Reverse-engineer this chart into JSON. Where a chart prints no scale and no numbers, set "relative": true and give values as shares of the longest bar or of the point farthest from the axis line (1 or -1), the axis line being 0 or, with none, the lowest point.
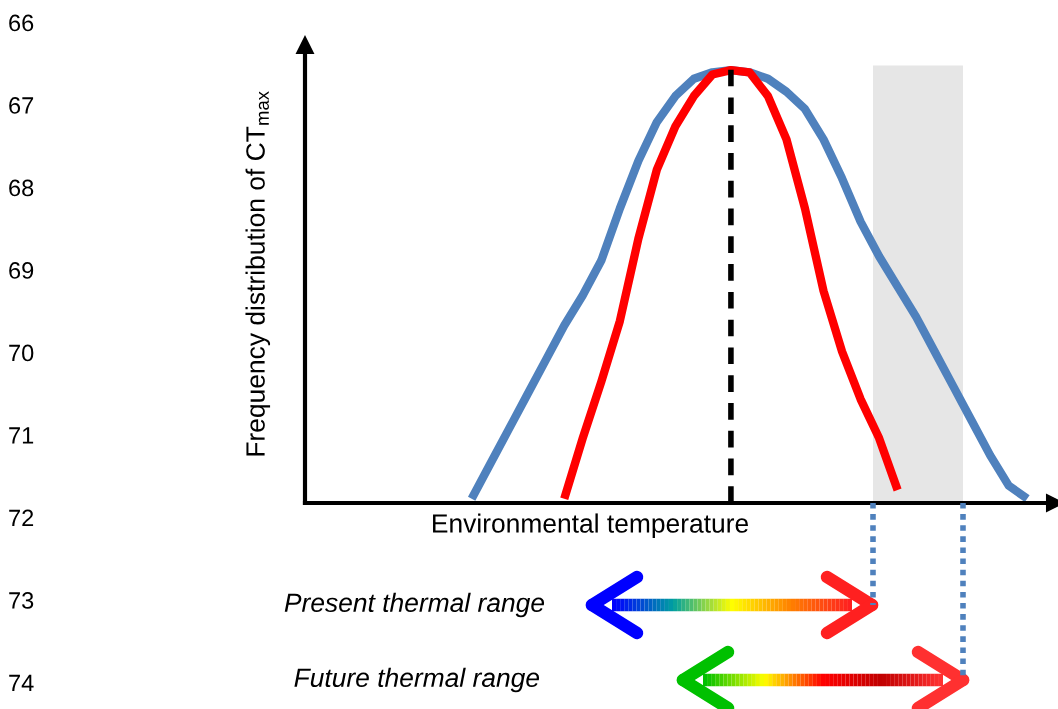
{
  "chart_data": {
    "type": "line",
    "relative": true,
    "xlabel": "Environmental temperature",
    "ylabel": "Frequency distribution of CT$_{max}$",
    "categories": [
      null,
      null,
      null,
      null,
      null,
      null,
      null,
      null,
      null,
      null,
      null,
      null,
      null,
      null,
      null,
      null,
      null,
      null,
      null,
      null,
      null,
      null,
      null,
      null,
      null,
      null,
      null,
      null,
      null,
      null,
      null,
      null,
      null,
      null,
      null,
      null,
      null,
      null,
      null,
      null,
      null
    ],
    "series": [
      {
        "color": "#4f81bd",
        "values": [
          null,
          null,
          null,
          null,
          null,
          null,
          null,
          null,
          null,
          0.01,
          0.09,
          0.17,
          0.25,
          0.33,
          0.41,
          0.48,
          0.56,
          0.68,
          0.79,
          0.88,
          0.94,
          0.98,
          0.995,
          1,
          0.995,
          0.98,
          0.95,
          0.91,
          0.84,
          0.75,
          0.65,
          0.57,
          0.5,
          0.43,
          0.35,
          0.27,
          0.19,
          0.11,
          0.04,
          0.01,
          null
        ]
      },
      {
        "color": "#ff0000",
        "values": [
          null,
          null,
          null,
          null,
          null,
          null,
          null,
          null,
          null,
          null,
          null,
          null,
          null,
          null,
          0.01,
          0.15,
          0.28,
          0.42,
          0.61,
          0.77,
          0.87,
          0.94,
          0.99,
          1,
          0.995,
          0.94,
          0.84,
          0.68,
          0.49,
          0.35,
          0.24,
          0.15,
          0.03,
          null,
          null,
          null,
          null,
          null,
          null,
          null,
          null
        ]
      }
    ],
    "annotations": [
      "66",
      "67",
      "68",
      "69",
      "70",
      "71",
      "72",
      "73",
      "74",
      "Present thermal range",
      "Future thermal range"
    ]
  }
}
